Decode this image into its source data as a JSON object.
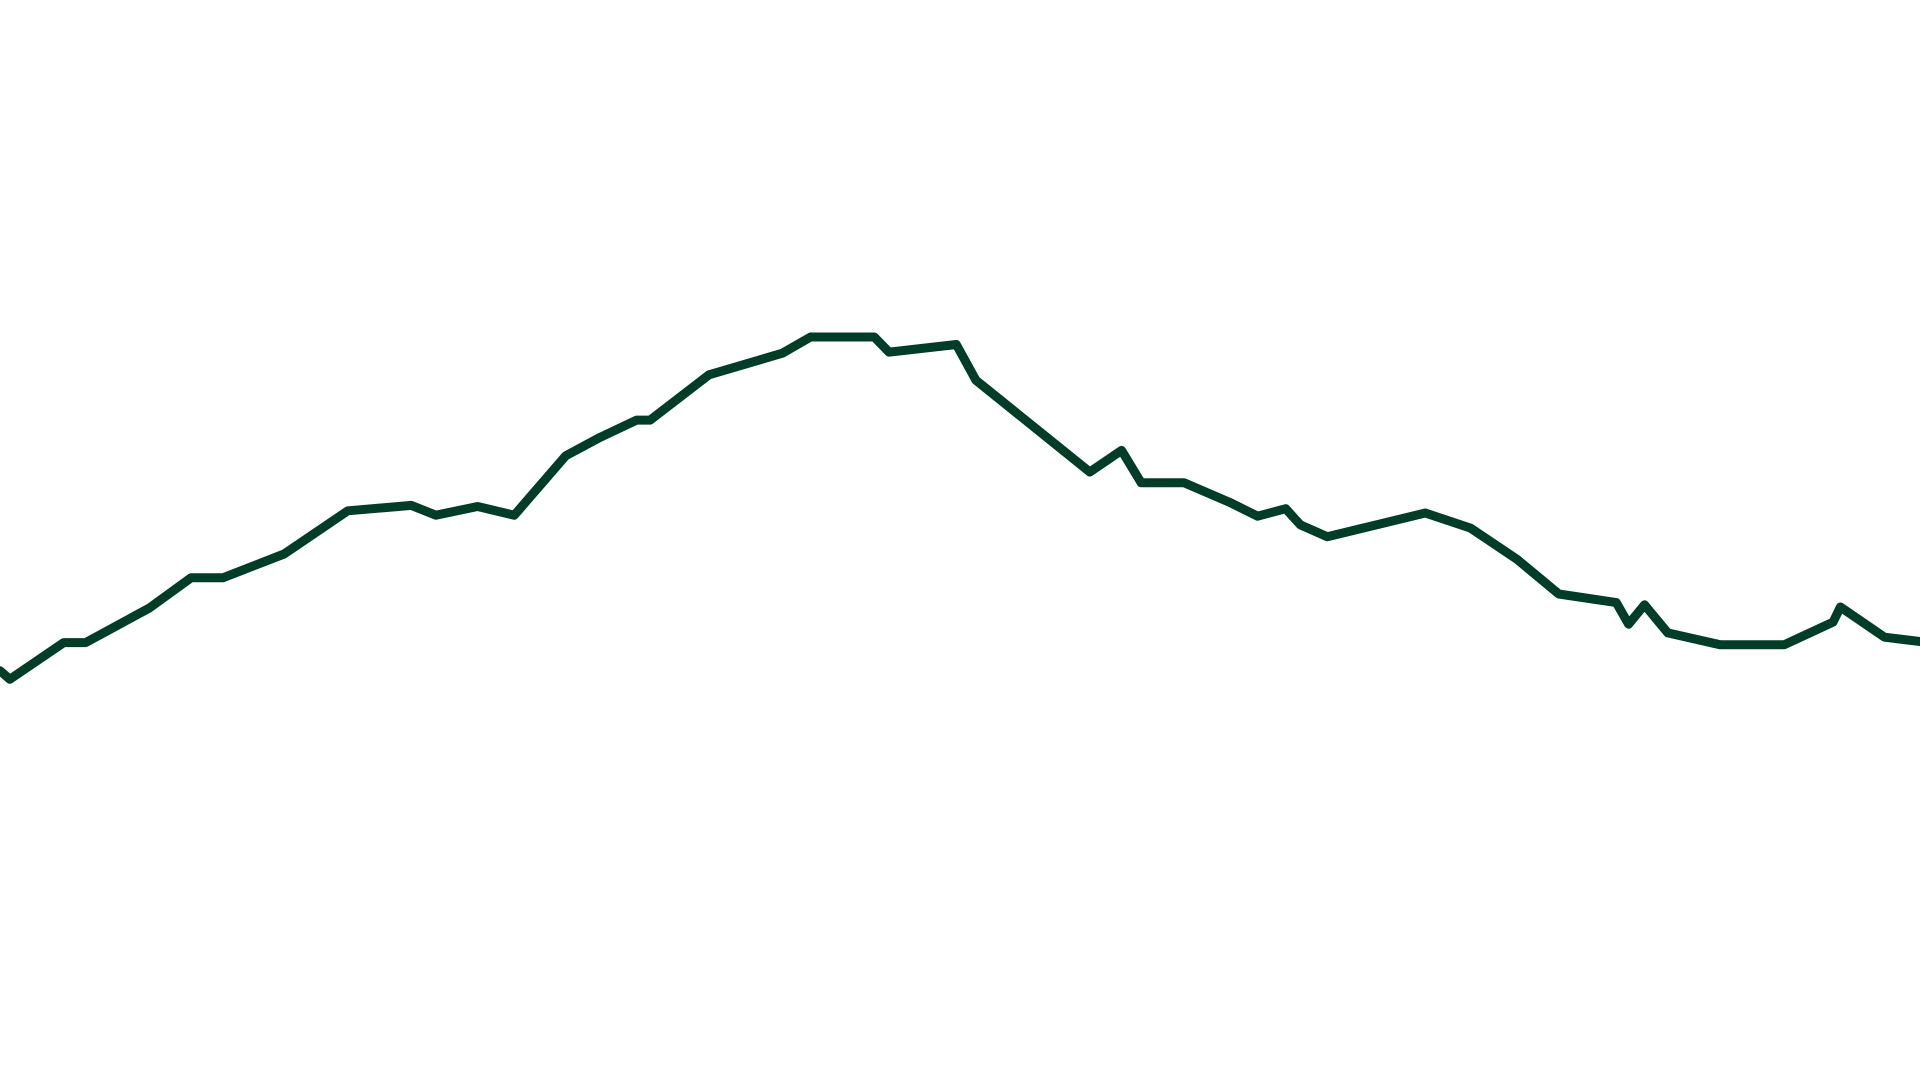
{
  "chart_data": {
    "type": "line",
    "title": "",
    "xlabel": "",
    "ylabel": "",
    "grid": false,
    "legend": "none",
    "ylim": [
      0,
      100
    ],
    "series": [
      {
        "color": "#003d29",
        "x": [
          0,
          8,
          52,
          70,
          122,
          156,
          182,
          232,
          284,
          336,
          356,
          390,
          420,
          462,
          490,
          520,
          531,
          579,
          639,
          662,
          714,
          726,
          781,
          797,
          890,
          916,
          932,
          967,
          1004,
          1027,
          1050,
          1062,
          1084,
          1164,
          1201,
          1239,
          1273,
          1320,
          1330,
          1343,
          1362,
          1405,
          1457,
          1497,
          1503,
          1539,
          1568
        ],
        "y": [
          37.9,
          37.1,
          40.5,
          40.5,
          43.7,
          46.5,
          46.5,
          48.7,
          52.7,
          53.2,
          52.3,
          53.1,
          52.3,
          57.8,
          59.5,
          61.1,
          61.1,
          65.3,
          67.3,
          68.8,
          68.8,
          67.4,
          68.1,
          64.8,
          56.3,
          58.3,
          55.3,
          55.3,
          53.5,
          52.2,
          52.9,
          51.4,
          50.3,
          52.5,
          51.1,
          48.2,
          45.0,
          44.2,
          42.2,
          44.0,
          41.4,
          40.3,
          40.3,
          42.4,
          43.8,
          41.0,
          40.6
        ]
      }
    ]
  }
}
